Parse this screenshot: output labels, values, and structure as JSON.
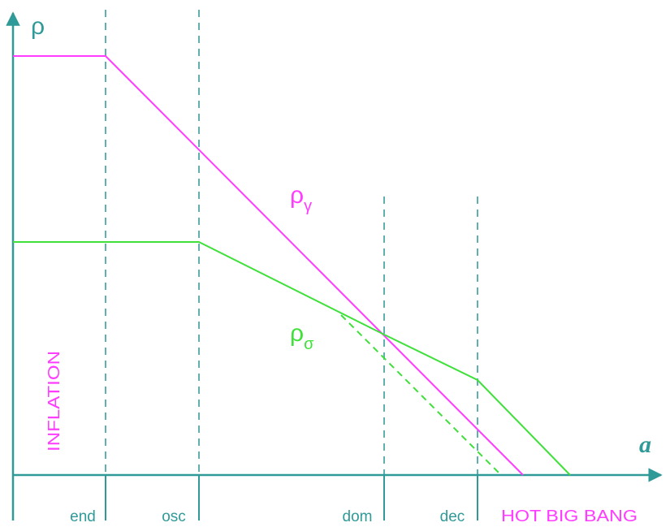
{
  "colors": {
    "axis": "#2f9a98",
    "guide": "#5fb0ae",
    "rho_gamma": "#ff3cff",
    "rho_sigma": "#3fe03a"
  },
  "axes": {
    "y_label": "ρ",
    "x_label": "a"
  },
  "curves": {
    "rho_gamma": {
      "symbol": "ρ",
      "subscript": "γ"
    },
    "rho_sigma": {
      "symbol": "ρ",
      "subscript": "σ"
    }
  },
  "epochs": {
    "end": "end",
    "osc": "osc",
    "dom": "dom",
    "dec": "dec"
  },
  "regions": {
    "inflation": "INFLATION",
    "hot_big_bang": "HOT BIG BANG"
  }
}
